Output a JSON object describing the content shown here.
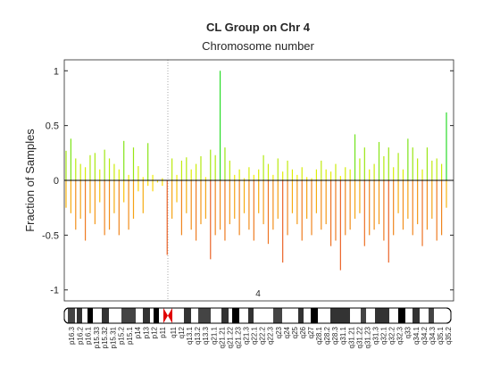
{
  "chart_data": {
    "type": "bar",
    "title": "CL Group on Chr 4",
    "xlabel": "Chromosome number",
    "ylabel": "Fraction of Samples",
    "chromosome_label": "4",
    "ylim": [
      -1.1,
      1.1
    ],
    "yticks": [
      -1,
      -0.5,
      0,
      0.5,
      1
    ],
    "series": [
      {
        "name": "gain",
        "values": [
          0.27,
          0.38,
          0.2,
          0.15,
          0.12,
          0.23,
          0.25,
          0.1,
          0.28,
          0.2,
          0.15,
          0.1,
          0.36,
          0.05,
          0.3,
          0.13,
          0.03,
          0.34,
          0.05,
          0.0,
          0.02,
          0.0,
          0.2,
          0.05,
          0.18,
          0.21,
          0.1,
          0.15,
          0.22,
          0.03,
          0.28,
          0.23,
          1.0,
          0.3,
          0.18,
          0.05,
          0.1,
          0.02,
          0.12,
          0.05,
          0.1,
          0.23,
          0.15,
          0.05,
          0.2,
          0.08,
          0.18,
          0.1,
          0.05,
          0.12,
          0.03,
          0.02,
          0.1,
          0.18,
          0.1,
          0.08,
          0.15,
          0.04,
          0.12,
          0.1,
          0.42,
          0.2,
          0.3,
          0.1,
          0.15,
          0.35,
          0.22,
          0.3,
          0.12,
          0.25,
          0.1,
          0.38,
          0.3,
          0.2,
          0.1,
          0.3,
          0.18,
          0.2,
          0.15,
          0.62
        ]
      },
      {
        "name": "loss",
        "values": [
          -0.25,
          -0.3,
          -0.45,
          -0.35,
          -0.55,
          -0.3,
          -0.4,
          -0.2,
          -0.5,
          -0.45,
          -0.3,
          -0.5,
          -0.2,
          -0.45,
          -0.35,
          -0.1,
          -0.3,
          -0.05,
          -0.1,
          -0.02,
          -0.05,
          -0.68,
          -0.35,
          -0.2,
          -0.5,
          -0.3,
          -0.45,
          -0.55,
          -0.4,
          -0.35,
          -0.72,
          -0.5,
          -0.45,
          -0.55,
          -0.4,
          -0.35,
          -0.5,
          -0.3,
          -0.45,
          -0.55,
          -0.3,
          -0.4,
          -0.58,
          -0.45,
          -0.35,
          -0.75,
          -0.5,
          -0.3,
          -0.4,
          -0.55,
          -0.35,
          -0.5,
          -0.3,
          -0.45,
          -0.4,
          -0.6,
          -0.55,
          -0.82,
          -0.5,
          -0.45,
          -0.35,
          -0.3,
          -0.6,
          -0.5,
          -0.45,
          -0.4,
          -0.55,
          -0.75,
          -0.5,
          -0.3,
          -0.45,
          -0.35,
          -0.5,
          -0.4,
          -0.6,
          -0.45,
          -0.35,
          -0.55,
          -0.5,
          -0.25
        ]
      }
    ],
    "bands": [
      "p16.3",
      "p16.2",
      "p16.1",
      "p15.33",
      "p15.32",
      "p15.31",
      "p15.2",
      "p15.1",
      "p14",
      "p13",
      "p12",
      "p11",
      "q11",
      "q12",
      "q13.1",
      "q13.2",
      "q13.3",
      "q21.1",
      "q21.21",
      "q21.22",
      "q21.23",
      "q21.3",
      "q22.1",
      "q22.2",
      "q22.3",
      "q23",
      "q24",
      "q25",
      "q26",
      "q27",
      "q28.1",
      "q28.2",
      "q28.3",
      "q31.1",
      "q31.21",
      "q31.22",
      "q31.23",
      "q31.3",
      "q32.1",
      "q32.2",
      "q32.3",
      "q33",
      "q34.1",
      "q34.2",
      "q34.3",
      "q35.1",
      "q35.2"
    ]
  }
}
